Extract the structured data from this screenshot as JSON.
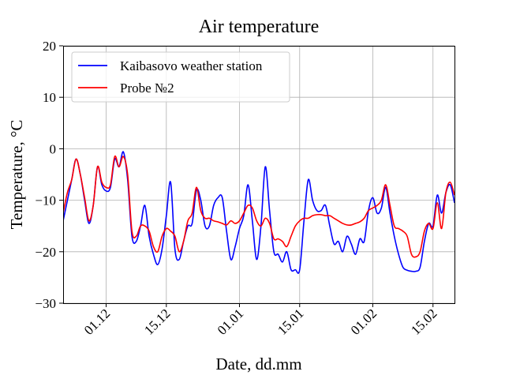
{
  "chart_data": {
    "type": "line",
    "title": "Air temperature",
    "xlabel": "Date, dd.mm",
    "ylabel": "Temperature, °C",
    "xlim": [
      "2023-11-21",
      "2024-02-20"
    ],
    "ylim": [
      -30,
      20
    ],
    "yticks": [
      -30,
      -20,
      -10,
      0,
      10,
      20
    ],
    "xticks": [
      {
        "date": "2023-12-01",
        "label": "01.12"
      },
      {
        "date": "2023-12-15",
        "label": "15.12"
      },
      {
        "date": "2024-01-01",
        "label": "01.01"
      },
      {
        "date": "2024-01-15",
        "label": "15.01"
      },
      {
        "date": "2024-02-01",
        "label": "01.02"
      },
      {
        "date": "2024-02-15",
        "label": "15.02"
      }
    ],
    "grid": true,
    "legend": "top-left",
    "series": [
      {
        "name": "Kaibasovo weather station",
        "color": "#0000ff",
        "points": [
          [
            "2023-11-21",
            -14
          ],
          [
            "2023-11-22",
            -10
          ],
          [
            "2023-11-23",
            -6
          ],
          [
            "2023-11-24",
            -2
          ],
          [
            "2023-11-25",
            -5
          ],
          [
            "2023-11-26",
            -10
          ],
          [
            "2023-11-27",
            -14.5
          ],
          [
            "2023-11-28",
            -11
          ],
          [
            "2023-11-29",
            -3.5
          ],
          [
            "2023-11-30",
            -7
          ],
          [
            "2023-12-01",
            -8.2
          ],
          [
            "2023-12-02",
            -7.5
          ],
          [
            "2023-12-03",
            -2
          ],
          [
            "2023-12-04",
            -3.5
          ],
          [
            "2023-12-05",
            -0.6
          ],
          [
            "2023-12-06",
            -6
          ],
          [
            "2023-12-07",
            -17
          ],
          [
            "2023-12-08",
            -18
          ],
          [
            "2023-12-09",
            -15
          ],
          [
            "2023-12-10",
            -11
          ],
          [
            "2023-12-11",
            -17
          ],
          [
            "2023-12-12",
            -20.5
          ],
          [
            "2023-12-13",
            -22.5
          ],
          [
            "2023-12-14",
            -19.5
          ],
          [
            "2023-12-15",
            -13
          ],
          [
            "2023-12-16",
            -6.5
          ],
          [
            "2023-12-17",
            -19.5
          ],
          [
            "2023-12-18",
            -21.5
          ],
          [
            "2023-12-19",
            -18
          ],
          [
            "2023-12-20",
            -15
          ],
          [
            "2023-12-21",
            -14.5
          ],
          [
            "2023-12-22",
            -8
          ],
          [
            "2023-12-23",
            -10
          ],
          [
            "2023-12-24",
            -15
          ],
          [
            "2023-12-25",
            -15
          ],
          [
            "2023-12-26",
            -11
          ],
          [
            "2023-12-27",
            -9.5
          ],
          [
            "2023-12-28",
            -9.5
          ],
          [
            "2023-12-29",
            -16
          ],
          [
            "2023-12-30",
            -21.5
          ],
          [
            "2023-12-31",
            -19
          ],
          [
            "2024-01-01",
            -15.5
          ],
          [
            "2024-01-02",
            -13
          ],
          [
            "2024-01-03",
            -7
          ],
          [
            "2024-01-04",
            -14
          ],
          [
            "2024-01-05",
            -21.5
          ],
          [
            "2024-01-06",
            -15
          ],
          [
            "2024-01-07",
            -3.5
          ],
          [
            "2024-01-08",
            -12
          ],
          [
            "2024-01-09",
            -20
          ],
          [
            "2024-01-10",
            -20.5
          ],
          [
            "2024-01-11",
            -22
          ],
          [
            "2024-01-12",
            -20
          ],
          [
            "2024-01-13",
            -23.5
          ],
          [
            "2024-01-14",
            -23.5
          ],
          [
            "2024-01-15",
            -23.5
          ],
          [
            "2024-01-16",
            -14
          ],
          [
            "2024-01-17",
            -6
          ],
          [
            "2024-01-18",
            -10
          ],
          [
            "2024-01-19",
            -12
          ],
          [
            "2024-01-20",
            -12
          ],
          [
            "2024-01-21",
            -11
          ],
          [
            "2024-01-22",
            -15
          ],
          [
            "2024-01-23",
            -18.5
          ],
          [
            "2024-01-24",
            -18
          ],
          [
            "2024-01-25",
            -20
          ],
          [
            "2024-01-26",
            -17
          ],
          [
            "2024-01-27",
            -18.5
          ],
          [
            "2024-01-28",
            -20.5
          ],
          [
            "2024-01-29",
            -17.5
          ],
          [
            "2024-01-30",
            -18
          ],
          [
            "2024-01-31",
            -12
          ],
          [
            "2024-02-01",
            -9.5
          ],
          [
            "2024-02-02",
            -12.5
          ],
          [
            "2024-02-03",
            -11.5
          ],
          [
            "2024-02-04",
            -7.5
          ],
          [
            "2024-02-05",
            -12.5
          ],
          [
            "2024-02-06",
            -17
          ],
          [
            "2024-02-07",
            -20.5
          ],
          [
            "2024-02-08",
            -23
          ],
          [
            "2024-02-09",
            -23.6
          ],
          [
            "2024-02-10",
            -23.8
          ],
          [
            "2024-02-11",
            -23.8
          ],
          [
            "2024-02-12",
            -23
          ],
          [
            "2024-02-13",
            -18
          ],
          [
            "2024-02-14",
            -14.5
          ],
          [
            "2024-02-15",
            -15
          ],
          [
            "2024-02-16",
            -9
          ],
          [
            "2024-02-17",
            -12.5
          ],
          [
            "2024-02-18",
            -8.5
          ],
          [
            "2024-02-19",
            -7
          ],
          [
            "2024-02-20",
            -10.5
          ]
        ]
      },
      {
        "name": "Probe №2",
        "color": "#ff0000",
        "points": [
          [
            "2023-11-21",
            -12.5
          ],
          [
            "2023-11-22",
            -8.5
          ],
          [
            "2023-11-23",
            -6
          ],
          [
            "2023-11-24",
            -2
          ],
          [
            "2023-11-25",
            -5
          ],
          [
            "2023-11-26",
            -9.5
          ],
          [
            "2023-11-27",
            -14
          ],
          [
            "2023-11-28",
            -11
          ],
          [
            "2023-11-29",
            -3.5
          ],
          [
            "2023-11-30",
            -6.5
          ],
          [
            "2023-12-01",
            -7.5
          ],
          [
            "2023-12-02",
            -7
          ],
          [
            "2023-12-03",
            -1.5
          ],
          [
            "2023-12-04",
            -3.5
          ],
          [
            "2023-12-05",
            -1.5
          ],
          [
            "2023-12-06",
            -5
          ],
          [
            "2023-12-07",
            -16
          ],
          [
            "2023-12-08",
            -17
          ],
          [
            "2023-12-09",
            -15
          ],
          [
            "2023-12-10",
            -15
          ],
          [
            "2023-12-11",
            -16
          ],
          [
            "2023-12-12",
            -19
          ],
          [
            "2023-12-13",
            -20
          ],
          [
            "2023-12-14",
            -17
          ],
          [
            "2023-12-15",
            -15.5
          ],
          [
            "2023-12-16",
            -16
          ],
          [
            "2023-12-17",
            -17
          ],
          [
            "2023-12-18",
            -20
          ],
          [
            "2023-12-19",
            -18
          ],
          [
            "2023-12-20",
            -14
          ],
          [
            "2023-12-21",
            -12.5
          ],
          [
            "2023-12-22",
            -7.5
          ],
          [
            "2023-12-23",
            -12
          ],
          [
            "2023-12-24",
            -13.5
          ],
          [
            "2023-12-25",
            -13.5
          ],
          [
            "2023-12-26",
            -14
          ],
          [
            "2023-12-27",
            -14.2
          ],
          [
            "2023-12-28",
            -14.5
          ],
          [
            "2023-12-29",
            -14.8
          ],
          [
            "2023-12-30",
            -14
          ],
          [
            "2023-12-31",
            -14.5
          ],
          [
            "2024-01-01",
            -14
          ],
          [
            "2024-01-02",
            -12.5
          ],
          [
            "2024-01-03",
            -11
          ],
          [
            "2024-01-04",
            -11.5
          ],
          [
            "2024-01-05",
            -14
          ],
          [
            "2024-01-06",
            -15
          ],
          [
            "2024-01-07",
            -13.5
          ],
          [
            "2024-01-08",
            -14.5
          ],
          [
            "2024-01-09",
            -17.5
          ],
          [
            "2024-01-10",
            -17.5
          ],
          [
            "2024-01-11",
            -18
          ],
          [
            "2024-01-12",
            -19
          ],
          [
            "2024-01-13",
            -17
          ],
          [
            "2024-01-14",
            -15
          ],
          [
            "2024-01-15",
            -14
          ],
          [
            "2024-01-16",
            -13.5
          ],
          [
            "2024-01-17",
            -13.5
          ],
          [
            "2024-01-18",
            -13
          ],
          [
            "2024-01-19",
            -12.8
          ],
          [
            "2024-01-20",
            -12.8
          ],
          [
            "2024-01-21",
            -13
          ],
          [
            "2024-01-22",
            -13
          ],
          [
            "2024-01-23",
            -13.5
          ],
          [
            "2024-01-24",
            -14
          ],
          [
            "2024-01-25",
            -14.5
          ],
          [
            "2024-01-26",
            -14.8
          ],
          [
            "2024-01-27",
            -14.8
          ],
          [
            "2024-01-28",
            -14.5
          ],
          [
            "2024-01-29",
            -14.2
          ],
          [
            "2024-01-30",
            -13.5
          ],
          [
            "2024-01-31",
            -12
          ],
          [
            "2024-02-01",
            -11.5
          ],
          [
            "2024-02-02",
            -11
          ],
          [
            "2024-02-03",
            -10
          ],
          [
            "2024-02-04",
            -7
          ],
          [
            "2024-02-05",
            -11
          ],
          [
            "2024-02-06",
            -15
          ],
          [
            "2024-02-07",
            -15.5
          ],
          [
            "2024-02-08",
            -16
          ],
          [
            "2024-02-09",
            -17
          ],
          [
            "2024-02-10",
            -20.5
          ],
          [
            "2024-02-11",
            -21
          ],
          [
            "2024-02-12",
            -20
          ],
          [
            "2024-02-13",
            -16
          ],
          [
            "2024-02-14",
            -14.5
          ],
          [
            "2024-02-15",
            -15.5
          ],
          [
            "2024-02-16",
            -10.5
          ],
          [
            "2024-02-17",
            -15.5
          ],
          [
            "2024-02-18",
            -8.5
          ],
          [
            "2024-02-19",
            -6.5
          ],
          [
            "2024-02-20",
            -9
          ]
        ]
      }
    ]
  }
}
